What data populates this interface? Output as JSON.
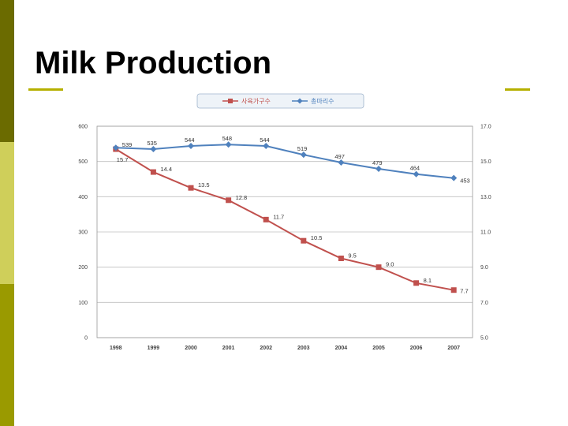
{
  "slide": {
    "title": "Milk Production"
  },
  "colors": {
    "accent_band_dark": "#6b6b00",
    "accent_band_light": "#cfcf5a",
    "accent_band_olive": "#9a9a00",
    "rule": "#b5b000",
    "series_red": "#c0504d",
    "series_blue": "#4f81bd"
  },
  "chart_data": {
    "type": "line",
    "categories": [
      "1998",
      "1999",
      "2000",
      "2001",
      "2002",
      "2003",
      "2004",
      "2005",
      "2006",
      "2007"
    ],
    "series": [
      {
        "name": "사육가구수",
        "axis": "right",
        "color": "#c0504d",
        "marker": "square",
        "values": [
          15.7,
          14.4,
          13.5,
          12.8,
          11.7,
          10.5,
          9.5,
          9.0,
          8.1,
          7.7
        ],
        "labels": [
          "15.7",
          "14.4",
          "13.5",
          "12.8",
          "11.7",
          "10.5",
          "9.5",
          "9.0",
          "8.1",
          "7.7"
        ]
      },
      {
        "name": "총마리수",
        "axis": "left",
        "color": "#4f81bd",
        "marker": "diamond",
        "values": [
          539,
          535,
          544,
          548,
          544,
          519,
          497,
          479,
          464,
          453
        ],
        "labels": [
          "539",
          "535",
          "544",
          "548",
          "544",
          "519",
          "497",
          "479",
          "464",
          "453"
        ]
      }
    ],
    "left_axis": {
      "ylim": [
        0,
        600
      ],
      "ticks": [
        "600",
        "500",
        "400",
        "300",
        "200",
        "100",
        "0"
      ]
    },
    "right_axis": {
      "ylim": [
        5.0,
        17.0
      ],
      "ticks": [
        "17.0",
        "15.0",
        "13.0",
        "11.0",
        "9.0",
        "7.0",
        "5.0"
      ]
    },
    "grid": true,
    "legend": "top"
  }
}
